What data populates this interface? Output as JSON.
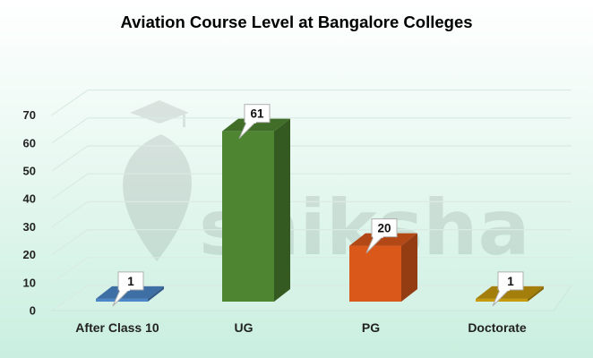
{
  "chart_data": {
    "type": "bar",
    "title": "Aviation Course Level at Bangalore Colleges",
    "categories": [
      "After Class 10",
      "UG",
      "PG",
      "Doctorate"
    ],
    "values": [
      1,
      61,
      20,
      1
    ],
    "colors": [
      "#4a86c8",
      "#4e8530",
      "#d9581a",
      "#c79a0c"
    ],
    "ylim": [
      0,
      70
    ],
    "yticks": [
      0,
      10,
      20,
      30,
      40,
      50,
      60,
      70
    ],
    "xlabel": "",
    "ylabel": "",
    "grid": true,
    "legend": "none",
    "style": "3d",
    "data_labels": true
  },
  "watermark": {
    "text": "shiksha"
  }
}
